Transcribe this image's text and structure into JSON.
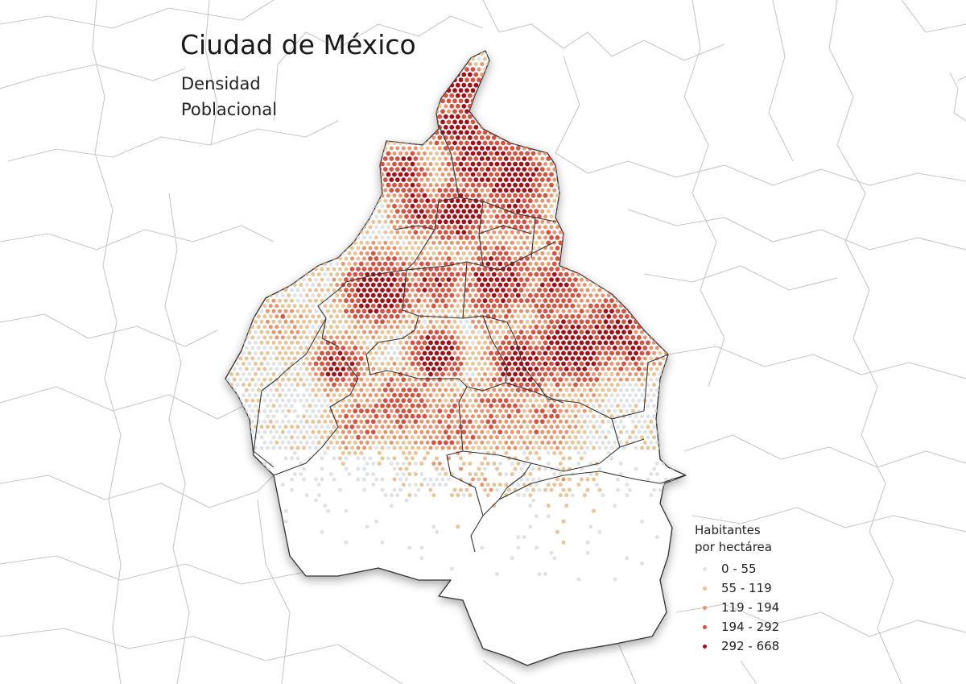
{
  "title": "Ciudad de México",
  "subtitle_line1": "Densidad",
  "subtitle_line2": "Poblacional",
  "legend": {
    "title_line1": "Habitantes",
    "title_line2": "por hectárea",
    "items": [
      {
        "label": "0 - 55",
        "color": "#e0e3e6"
      },
      {
        "label": "55 - 119",
        "color": "#e8c497"
      },
      {
        "label": "119 - 194",
        "color": "#e8936b"
      },
      {
        "label": "194 - 292",
        "color": "#d8503e"
      },
      {
        "label": "292 - 668",
        "color": "#a50f15"
      }
    ]
  }
}
